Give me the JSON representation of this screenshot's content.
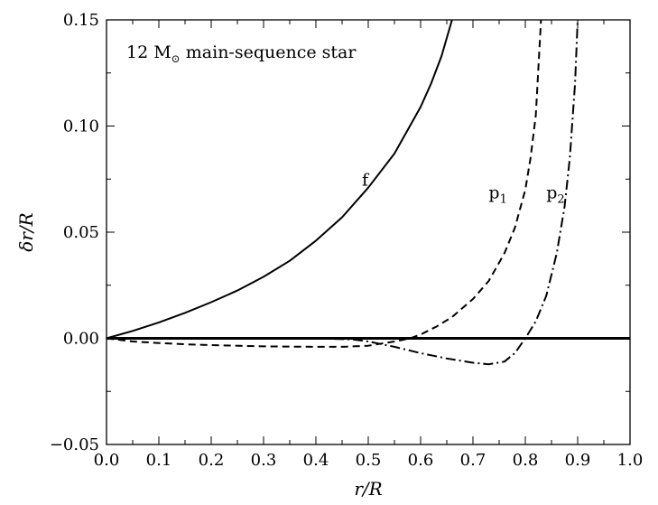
{
  "chart_data": {
    "type": "line",
    "title": "",
    "annotation": {
      "prefix": "12 M",
      "subscript": "⊙",
      "suffix": " main-sequence star"
    },
    "xlabel": "r/R",
    "ylabel": "δr/R",
    "xlim": [
      0.0,
      1.0
    ],
    "ylim": [
      -0.05,
      0.15
    ],
    "x_ticks": [
      0.0,
      0.1,
      0.2,
      0.3,
      0.4,
      0.5,
      0.6,
      0.7,
      0.8,
      0.9,
      1.0
    ],
    "x_tick_labels": [
      "0.0",
      "0.1",
      "0.2",
      "0.3",
      "0.4",
      "0.5",
      "0.6",
      "0.7",
      "0.8",
      "0.9",
      "1.0"
    ],
    "y_ticks": [
      -0.05,
      0.0,
      0.05,
      0.1,
      0.15
    ],
    "y_tick_labels": [
      "−0.05",
      "0.00",
      "0.05",
      "0.10",
      "0.15"
    ],
    "grid": false,
    "series": [
      {
        "name": "f",
        "style": "solid",
        "x": [
          0.0,
          0.05,
          0.1,
          0.15,
          0.2,
          0.25,
          0.3,
          0.35,
          0.4,
          0.45,
          0.5,
          0.55,
          0.6,
          0.62,
          0.64,
          0.66
        ],
        "y": [
          0.0,
          0.0035,
          0.0075,
          0.012,
          0.017,
          0.0225,
          0.029,
          0.0365,
          0.046,
          0.057,
          0.071,
          0.087,
          0.109,
          0.12,
          0.133,
          0.15
        ]
      },
      {
        "name": "p",
        "name_sub": "1",
        "style": "dashed",
        "x": [
          0.0,
          0.05,
          0.1,
          0.15,
          0.2,
          0.3,
          0.4,
          0.45,
          0.5,
          0.55,
          0.58,
          0.6,
          0.63,
          0.66,
          0.7,
          0.73,
          0.76,
          0.78,
          0.8,
          0.81,
          0.82,
          0.83
        ],
        "y": [
          0.0,
          -0.0015,
          -0.0022,
          -0.0028,
          -0.0032,
          -0.0038,
          -0.004,
          -0.004,
          -0.0035,
          -0.0015,
          0.0,
          0.0018,
          0.0055,
          0.01,
          0.0185,
          0.027,
          0.04,
          0.052,
          0.07,
          0.085,
          0.105,
          0.15
        ]
      },
      {
        "name": "p",
        "name_sub": "2",
        "style": "dashdot",
        "x": [
          0.0,
          0.1,
          0.2,
          0.3,
          0.4,
          0.47,
          0.5,
          0.55,
          0.6,
          0.65,
          0.7,
          0.73,
          0.76,
          0.78,
          0.8,
          0.82,
          0.84,
          0.86,
          0.875,
          0.885,
          0.895,
          0.9
        ],
        "y": [
          0.0,
          0.0,
          0.0,
          0.0,
          0.0,
          -0.0005,
          -0.0015,
          -0.004,
          -0.007,
          -0.0095,
          -0.0115,
          -0.0122,
          -0.011,
          -0.007,
          0.0,
          0.008,
          0.02,
          0.04,
          0.062,
          0.085,
          0.12,
          0.15
        ]
      }
    ],
    "zero_line": {
      "y": 0.0,
      "style": "solid",
      "thick": true
    },
    "labels": [
      {
        "text": "f",
        "x": 0.488,
        "y": 0.072
      },
      {
        "text": "p",
        "sub": "1",
        "x": 0.73,
        "y": 0.066
      },
      {
        "text": "p",
        "sub": "2",
        "x": 0.84,
        "y": 0.066
      }
    ]
  }
}
